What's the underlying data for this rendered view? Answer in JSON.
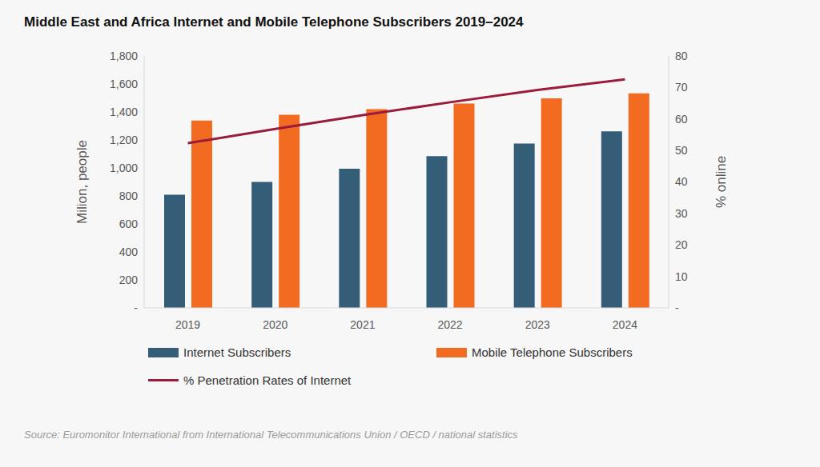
{
  "chart_data": {
    "type": "bar",
    "title": "Middle East and Africa Internet and Mobile Telephone Subscribers 2019–2024",
    "y_label": "Milion, people",
    "y2_label": "% online",
    "source": "Source: Euromonitor International from International Telecommunications Union / OECD / national statistics",
    "categories": [
      "2019",
      "2020",
      "2021",
      "2022",
      "2023",
      "2024"
    ],
    "series": [
      {
        "name": "Internet Subscribers",
        "type": "bar",
        "color": "#345e77",
        "values": [
          808,
          900,
          995,
          1085,
          1175,
          1262
        ]
      },
      {
        "name": "Mobile Telephone Subscribers",
        "type": "bar",
        "color": "#f26b21",
        "values": [
          1338,
          1380,
          1420,
          1460,
          1497,
          1533
        ]
      },
      {
        "name": "% Penetration Rates of Internet",
        "type": "line",
        "axis": "y2",
        "color": "#9b1b3d",
        "values": [
          52.3,
          56.8,
          61.2,
          65.3,
          69.2,
          72.6
        ]
      }
    ],
    "ylim": [
      0,
      1800
    ],
    "yticks": [
      {
        "value": 0,
        "label": "-"
      },
      200,
      400,
      600,
      800,
      {
        "value": 1000,
        "label": "1,000"
      },
      {
        "value": 1200,
        "label": "1,200"
      },
      {
        "value": 1400,
        "label": "1,400"
      },
      {
        "value": 1600,
        "label": "1,600"
      },
      {
        "value": 1800,
        "label": "1,800"
      }
    ],
    "y2lim": [
      0,
      80
    ],
    "y2ticks": [
      {
        "value": 0,
        "label": "-"
      },
      10,
      20,
      30,
      40,
      50,
      60,
      70,
      80
    ],
    "legend": "bottom",
    "grid": false
  }
}
